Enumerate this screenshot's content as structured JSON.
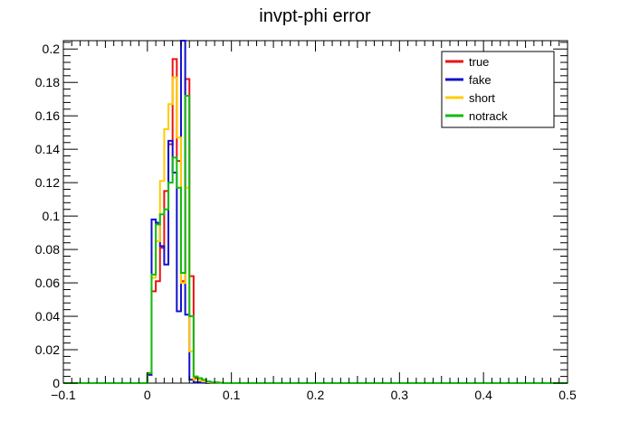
{
  "chart_data": {
    "type": "line",
    "title": "invpt-phi error",
    "xlabel": "",
    "ylabel": "",
    "xlim": [
      -0.1,
      0.5
    ],
    "ylim": [
      0,
      0.205
    ],
    "grid": false,
    "legend_position": "top-right",
    "x_ticks": [
      "−0.1",
      "0",
      "0.1",
      "0.2",
      "0.3",
      "0.4",
      "0.5"
    ],
    "y_ticks": [
      "0",
      "0.02",
      "0.04",
      "0.06",
      "0.08",
      "0.1",
      "0.12",
      "0.14",
      "0.16",
      "0.18",
      "0.2"
    ],
    "bin_edges": [
      0.0,
      0.005,
      0.01,
      0.015,
      0.02,
      0.025,
      0.03,
      0.035,
      0.04,
      0.045,
      0.05,
      0.055,
      0.06,
      0.065,
      0.07,
      0.075,
      0.08,
      0.085,
      0.09,
      0.095,
      0.1
    ],
    "series": [
      {
        "name": "true",
        "color": "#ee1111",
        "values": [
          0.005,
          0.055,
          0.061,
          0.081,
          0.115,
          0.143,
          0.194,
          0.133,
          0.061,
          0.182,
          0.064,
          0.003,
          0.002,
          0.001,
          0.0005,
          0.0002,
          0.0002,
          0,
          0,
          0
        ]
      },
      {
        "name": "fake",
        "color": "#1111cc",
        "values": [
          0.005,
          0.098,
          0.096,
          0.082,
          0.071,
          0.145,
          0.126,
          0.043,
          0.205,
          0.041,
          0.002,
          0.0005,
          0.0005,
          0.0002,
          0,
          0,
          0,
          0,
          0,
          0
        ]
      },
      {
        "name": "short",
        "color": "#ffcc00",
        "values": [
          0.006,
          0.063,
          0.085,
          0.121,
          0.152,
          0.167,
          0.183,
          0.147,
          0.06,
          0.117,
          0.019,
          0.002,
          0.002,
          0.001,
          0.0005,
          0.0002,
          0.0002,
          0,
          0,
          0
        ]
      },
      {
        "name": "notrack",
        "color": "#11bb11",
        "values": [
          0.006,
          0.065,
          0.095,
          0.101,
          0.104,
          0.12,
          0.135,
          0.117,
          0.066,
          0.172,
          0.04,
          0.004,
          0.003,
          0.002,
          0.001,
          0.0005,
          0.0005,
          0.0002,
          0,
          0
        ]
      }
    ]
  }
}
